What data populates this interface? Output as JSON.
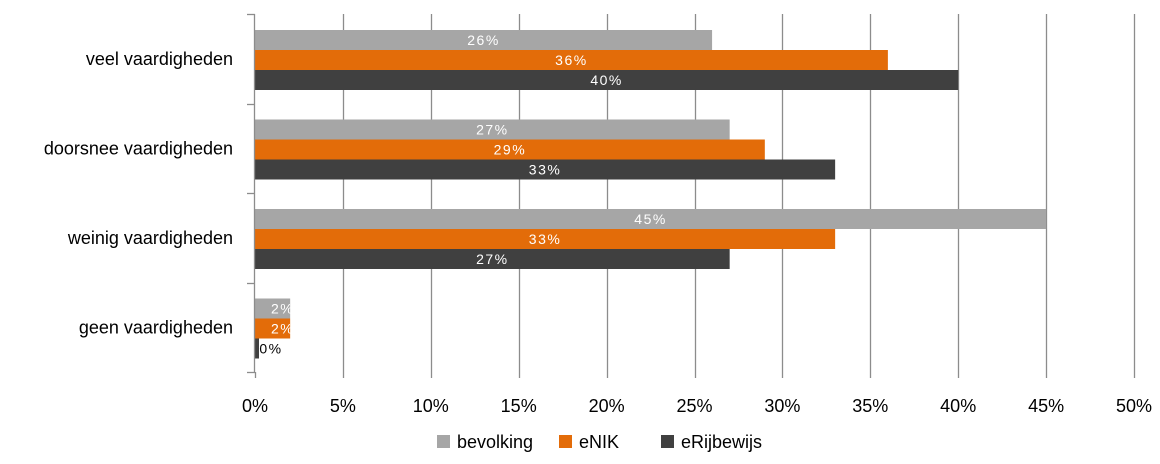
{
  "chart_data": {
    "type": "bar",
    "orientation": "horizontal",
    "title": "",
    "xlabel": "",
    "ylabel": "",
    "categories": [
      "veel vaardigheden",
      "doorsnee vaardigheden",
      "weinig vaardigheden",
      "geen vaardigheden"
    ],
    "series": [
      {
        "name": "bevolking",
        "color": "#a6a6a6",
        "values": [
          26,
          27,
          45,
          2
        ],
        "labels": [
          "26%",
          "27%",
          "45%",
          "2%"
        ]
      },
      {
        "name": "eNIK",
        "color": "#e36c09",
        "values": [
          36,
          29,
          33,
          2
        ],
        "labels": [
          "36%",
          "29%",
          "33%",
          "2%"
        ]
      },
      {
        "name": "eRijbewijs",
        "color": "#404040",
        "values": [
          40,
          33,
          27,
          0
        ],
        "labels": [
          "40%",
          "33%",
          "27%",
          "0%"
        ]
      }
    ],
    "xlim": [
      0,
      50
    ],
    "x_ticks": [
      0,
      5,
      10,
      15,
      20,
      25,
      30,
      35,
      40,
      45,
      50
    ],
    "x_tick_labels": [
      "0%",
      "5%",
      "10%",
      "15%",
      "20%",
      "25%",
      "30%",
      "35%",
      "40%",
      "45%",
      "50%"
    ],
    "grid": "vertical",
    "legend": "bottom-center"
  }
}
